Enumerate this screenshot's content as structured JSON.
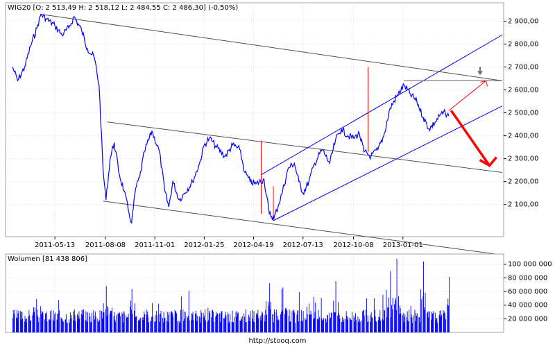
{
  "price_panel": {
    "title": "WIG20 [O: 2 513,49  H: 2 518,12  L: 2 484,55  C: 2 486,30] (-0,50%)"
  },
  "volume_panel": {
    "title": "Wolumen [81 438 806]"
  },
  "footer": {
    "source": "http://stooq.com"
  },
  "colors": {
    "price_line": "#0000ff",
    "channel_lines": "#505050",
    "trend_channel": "#0000ff",
    "annotation_red": "#ff0000",
    "volume_bars": "#0000ff",
    "marker_grey": "#707070"
  },
  "chart_data": [
    {
      "type": "line",
      "x_tick_labels": [
        "2011-05-13",
        "2011-08-08",
        "2011-11-01",
        "2012-01-25",
        "2012-04-19",
        "2012-07-13",
        "2012-10-08",
        "2013-01-01"
      ],
      "y_tick_labels": [
        "2 100,00",
        "2 200,00",
        "2 300,00",
        "2 400,00",
        "2 500,00",
        "2 600,00",
        "2 700,00",
        "2 800,00",
        "2 900,00"
      ],
      "ylim": [
        1960,
        2980
      ],
      "grid": true,
      "series": [
        {
          "values": [
            {
              "x": "2011-03-01",
              "y": 2700
            },
            {
              "x": "2011-03-10",
              "y": 2640
            },
            {
              "x": "2011-03-22",
              "y": 2700
            },
            {
              "x": "2011-04-01",
              "y": 2790
            },
            {
              "x": "2011-04-12",
              "y": 2870
            },
            {
              "x": "2011-04-19",
              "y": 2930
            },
            {
              "x": "2011-04-28",
              "y": 2910
            },
            {
              "x": "2011-05-13",
              "y": 2880
            },
            {
              "x": "2011-05-25",
              "y": 2840
            },
            {
              "x": "2011-06-06",
              "y": 2870
            },
            {
              "x": "2011-06-15",
              "y": 2920
            },
            {
              "x": "2011-06-28",
              "y": 2860
            },
            {
              "x": "2011-07-08",
              "y": 2780
            },
            {
              "x": "2011-07-20",
              "y": 2740
            },
            {
              "x": "2011-07-28",
              "y": 2620
            },
            {
              "x": "2011-08-04",
              "y": 2250
            },
            {
              "x": "2011-08-09",
              "y": 2120
            },
            {
              "x": "2011-08-16",
              "y": 2300
            },
            {
              "x": "2011-08-23",
              "y": 2370
            },
            {
              "x": "2011-09-01",
              "y": 2230
            },
            {
              "x": "2011-09-09",
              "y": 2160
            },
            {
              "x": "2011-09-16",
              "y": 2080
            },
            {
              "x": "2011-09-22",
              "y": 2020
            },
            {
              "x": "2011-09-29",
              "y": 2170
            },
            {
              "x": "2011-10-06",
              "y": 2220
            },
            {
              "x": "2011-10-14",
              "y": 2330
            },
            {
              "x": "2011-10-27",
              "y": 2420
            },
            {
              "x": "2011-11-09",
              "y": 2330
            },
            {
              "x": "2011-11-18",
              "y": 2160
            },
            {
              "x": "2011-11-25",
              "y": 2090
            },
            {
              "x": "2011-12-02",
              "y": 2200
            },
            {
              "x": "2011-12-13",
              "y": 2120
            },
            {
              "x": "2011-12-22",
              "y": 2150
            },
            {
              "x": "2012-01-05",
              "y": 2200
            },
            {
              "x": "2012-01-17",
              "y": 2280
            },
            {
              "x": "2012-01-25",
              "y": 2360
            },
            {
              "x": "2012-02-03",
              "y": 2390
            },
            {
              "x": "2012-02-15",
              "y": 2350
            },
            {
              "x": "2012-03-01",
              "y": 2310
            },
            {
              "x": "2012-03-14",
              "y": 2360
            },
            {
              "x": "2012-03-26",
              "y": 2340
            },
            {
              "x": "2012-04-04",
              "y": 2240
            },
            {
              "x": "2012-04-13",
              "y": 2200
            },
            {
              "x": "2012-04-23",
              "y": 2190
            },
            {
              "x": "2012-05-07",
              "y": 2210
            },
            {
              "x": "2012-05-16",
              "y": 2060
            },
            {
              "x": "2012-05-24",
              "y": 2040
            },
            {
              "x": "2012-06-01",
              "y": 2100
            },
            {
              "x": "2012-06-08",
              "y": 2160
            },
            {
              "x": "2012-06-18",
              "y": 2260
            },
            {
              "x": "2012-06-28",
              "y": 2280
            },
            {
              "x": "2012-07-06",
              "y": 2200
            },
            {
              "x": "2012-07-13",
              "y": 2150
            },
            {
              "x": "2012-07-23",
              "y": 2200
            },
            {
              "x": "2012-08-02",
              "y": 2280
            },
            {
              "x": "2012-08-15",
              "y": 2340
            },
            {
              "x": "2012-08-28",
              "y": 2280
            },
            {
              "x": "2012-09-07",
              "y": 2380
            },
            {
              "x": "2012-09-17",
              "y": 2430
            },
            {
              "x": "2012-09-28",
              "y": 2400
            },
            {
              "x": "2012-10-08",
              "y": 2390
            },
            {
              "x": "2012-10-18",
              "y": 2410
            },
            {
              "x": "2012-10-26",
              "y": 2330
            },
            {
              "x": "2012-11-07",
              "y": 2310
            },
            {
              "x": "2012-11-19",
              "y": 2340
            },
            {
              "x": "2012-11-29",
              "y": 2400
            },
            {
              "x": "2012-12-10",
              "y": 2520
            },
            {
              "x": "2012-12-21",
              "y": 2570
            },
            {
              "x": "2013-01-03",
              "y": 2620
            },
            {
              "x": "2013-01-14",
              "y": 2580
            },
            {
              "x": "2013-01-25",
              "y": 2550
            },
            {
              "x": "2013-02-05",
              "y": 2480
            },
            {
              "x": "2013-02-15",
              "y": 2430
            },
            {
              "x": "2013-02-26",
              "y": 2460
            },
            {
              "x": "2013-03-06",
              "y": 2490
            },
            {
              "x": "2013-03-15",
              "y": 2500
            },
            {
              "x": "2013-03-21",
              "y": 2486
            }
          ]
        }
      ],
      "annotations": {
        "channel_lines": [
          {
            "from": {
              "x": "2011-04-19",
              "y": 2930
            },
            "to": {
              "x": "2013-06-21",
              "y": 2640
            }
          },
          {
            "from": {
              "x": "2011-08-11",
              "y": 2460
            },
            "to": {
              "x": "2013-06-21",
              "y": 2240
            }
          },
          {
            "from": {
              "x": "2011-08-04",
              "y": 2115
            },
            "to": {
              "x": "2013-06-21",
              "y": 1880
            }
          }
        ],
        "trend_channel": [
          {
            "from": {
              "x": "2012-05-02",
              "y": 2230
            },
            "to": {
              "x": "2013-06-21",
              "y": 2840
            }
          },
          {
            "from": {
              "x": "2012-05-23",
              "y": 2030
            },
            "to": {
              "x": "2013-06-21",
              "y": 2530
            }
          }
        ],
        "spikes": [
          {
            "x": "2012-05-02",
            "y_low": 2060,
            "y_high": 2380
          },
          {
            "x": "2012-05-23",
            "y_low": 2030,
            "y_high": 2180
          },
          {
            "x": "2012-11-02",
            "y_low": 2330,
            "y_high": 2700
          }
        ],
        "resistance_line": {
          "from": {
            "x": "2013-01-03",
            "y": 2640
          },
          "to": {
            "x": "2013-06-21",
            "y": 2640
          }
        },
        "scenario_up": {
          "from": {
            "x": "2013-03-21",
            "y": 2510
          },
          "to": {
            "x": "2013-05-24",
            "y": 2640
          }
        },
        "scenario_down": {
          "from": {
            "x": "2013-03-25",
            "y": 2510
          },
          "to": {
            "x": "2013-05-30",
            "y": 2270
          }
        }
      }
    },
    {
      "type": "bar",
      "x_tick_labels": [
        "2011-05-13",
        "2011-08-08",
        "2011-11-01",
        "2012-01-25",
        "2012-04-19",
        "2012-07-13",
        "2012-10-08",
        "2013-01-01"
      ],
      "y_tick_labels": [
        "20 000 000",
        "40 000 000",
        "60 000 000",
        "80 000 000",
        "100 000 000"
      ],
      "ylim": [
        0,
        115000000
      ],
      "grid": true,
      "volume_profile": {
        "base": 22000000,
        "variation": 20000000,
        "peaks": [
          {
            "x": "2011-08-09",
            "y": 68000000
          },
          {
            "x": "2011-09-22",
            "y": 64000000
          },
          {
            "x": "2012-05-16",
            "y": 72000000
          },
          {
            "x": "2012-06-08",
            "y": 66000000
          },
          {
            "x": "2012-09-07",
            "y": 75000000
          },
          {
            "x": "2012-12-10",
            "y": 90000000
          },
          {
            "x": "2012-12-21",
            "y": 108000000
          },
          {
            "x": "2013-02-05",
            "y": 104000000
          },
          {
            "x": "2013-03-21",
            "y": 81438806
          }
        ]
      }
    }
  ]
}
